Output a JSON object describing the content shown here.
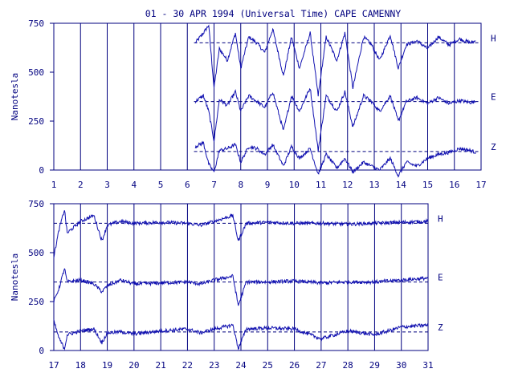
{
  "title": "01 - 30 APR 1994 (Universal Time) CAPE CAMENNY",
  "colors": {
    "ink": "#00007f",
    "trace": "#1010b0",
    "background": "#ffffff"
  },
  "chart_data": [
    {
      "type": "line",
      "panel": "upper",
      "ylabel": "Nanotesla",
      "ylim": [
        0,
        750
      ],
      "yticks": [
        0,
        250,
        500,
        750
      ],
      "xlim": [
        1,
        17
      ],
      "xticks": [
        1,
        2,
        3,
        4,
        5,
        6,
        7,
        8,
        9,
        10,
        11,
        12,
        13,
        14,
        15,
        16,
        17
      ],
      "grid": "vertical lines at each day",
      "baselines": [
        {
          "name": "H",
          "value": 650
        },
        {
          "name": "E",
          "value": 350
        },
        {
          "name": "Z",
          "value": 95
        }
      ],
      "data_start_day": 6.25,
      "data_end_day": 16.8,
      "series": [
        {
          "name": "H",
          "x": [
            6.3,
            6.6,
            6.8,
            7.0,
            7.2,
            7.5,
            7.8,
            8.0,
            8.3,
            8.6,
            8.9,
            9.2,
            9.6,
            9.9,
            10.2,
            10.6,
            10.9,
            11.2,
            11.6,
            11.9,
            12.2,
            12.6,
            12.9,
            13.2,
            13.6,
            13.9,
            14.2,
            14.6,
            15.0,
            15.4,
            15.8,
            16.2,
            16.6,
            16.8
          ],
          "values": [
            650,
            700,
            740,
            420,
            620,
            560,
            700,
            520,
            680,
            650,
            600,
            720,
            480,
            680,
            520,
            700,
            380,
            680,
            560,
            700,
            420,
            680,
            640,
            560,
            690,
            520,
            640,
            660,
            620,
            680,
            640,
            670,
            650,
            660
          ]
        },
        {
          "name": "E",
          "x": [
            6.3,
            6.6,
            6.8,
            7.0,
            7.2,
            7.5,
            7.8,
            8.0,
            8.3,
            8.6,
            8.9,
            9.2,
            9.6,
            9.9,
            10.2,
            10.6,
            10.9,
            11.2,
            11.6,
            11.9,
            12.2,
            12.6,
            12.9,
            13.2,
            13.6,
            13.9,
            14.2,
            14.6,
            15.0,
            15.4,
            15.8,
            16.2,
            16.6,
            16.8
          ],
          "values": [
            350,
            380,
            300,
            150,
            360,
            330,
            400,
            300,
            380,
            350,
            320,
            400,
            200,
            380,
            300,
            420,
            100,
            380,
            300,
            400,
            220,
            380,
            350,
            300,
            380,
            250,
            350,
            370,
            340,
            370,
            340,
            355,
            345,
            350
          ]
        },
        {
          "name": "Z",
          "x": [
            6.3,
            6.6,
            6.8,
            7.0,
            7.2,
            7.5,
            7.8,
            8.0,
            8.3,
            8.6,
            8.9,
            9.2,
            9.6,
            9.9,
            10.2,
            10.6,
            10.9,
            11.2,
            11.6,
            11.9,
            12.2,
            12.6,
            12.9,
            13.2,
            13.6,
            13.9,
            14.2,
            14.6,
            15.0,
            15.4,
            15.8,
            16.2,
            16.6,
            16.8
          ],
          "values": [
            120,
            140,
            30,
            -10,
            100,
            110,
            130,
            40,
            120,
            110,
            80,
            130,
            20,
            120,
            60,
            110,
            -20,
            80,
            10,
            60,
            -10,
            40,
            20,
            0,
            60,
            -30,
            40,
            20,
            60,
            80,
            90,
            110,
            100,
            90
          ]
        }
      ],
      "series_labels": [
        "H",
        "E",
        "Z"
      ]
    },
    {
      "type": "line",
      "panel": "lower",
      "ylabel": "Nanotesla",
      "ylim": [
        0,
        750
      ],
      "yticks": [
        0,
        250,
        500,
        750
      ],
      "xlim": [
        17,
        31
      ],
      "xticks": [
        17,
        18,
        19,
        20,
        21,
        22,
        23,
        24,
        25,
        26,
        27,
        28,
        29,
        30,
        31
      ],
      "grid": "vertical lines at each day",
      "baselines": [
        {
          "name": "H",
          "value": 650
        },
        {
          "name": "E",
          "value": 350
        },
        {
          "name": "Z",
          "value": 95
        }
      ],
      "series": [
        {
          "name": "H",
          "x": [
            17.0,
            17.2,
            17.4,
            17.5,
            18.0,
            18.5,
            18.8,
            19.0,
            19.5,
            20.0,
            21.0,
            22.0,
            22.5,
            23.0,
            23.7,
            23.9,
            24.2,
            25.0,
            26.0,
            27.0,
            28.0,
            29.0,
            30.0,
            31.0
          ],
          "values": [
            480,
            620,
            720,
            600,
            660,
            690,
            560,
            640,
            660,
            650,
            655,
            650,
            640,
            660,
            690,
            560,
            650,
            655,
            650,
            650,
            645,
            650,
            655,
            660
          ]
        },
        {
          "name": "E",
          "x": [
            17.0,
            17.2,
            17.4,
            17.5,
            18.0,
            18.5,
            18.8,
            19.0,
            19.5,
            20.0,
            21.0,
            22.0,
            22.5,
            23.0,
            23.7,
            23.9,
            24.2,
            25.0,
            26.0,
            27.0,
            28.0,
            29.0,
            30.0,
            31.0
          ],
          "values": [
            250,
            320,
            420,
            350,
            360,
            340,
            300,
            330,
            360,
            340,
            345,
            350,
            340,
            360,
            380,
            230,
            350,
            350,
            355,
            345,
            350,
            350,
            360,
            370
          ]
        },
        {
          "name": "Z",
          "x": [
            17.0,
            17.2,
            17.4,
            17.5,
            18.0,
            18.5,
            18.8,
            19.0,
            19.5,
            20.0,
            21.0,
            22.0,
            22.5,
            23.0,
            23.7,
            23.9,
            24.2,
            25.0,
            26.0,
            27.0,
            28.0,
            29.0,
            30.0,
            31.0
          ],
          "values": [
            150,
            60,
            10,
            80,
            100,
            110,
            40,
            90,
            95,
            85,
            100,
            110,
            90,
            110,
            130,
            10,
            110,
            115,
            110,
            60,
            100,
            80,
            120,
            130
          ]
        }
      ],
      "series_labels": [
        "H",
        "E",
        "Z"
      ]
    }
  ]
}
